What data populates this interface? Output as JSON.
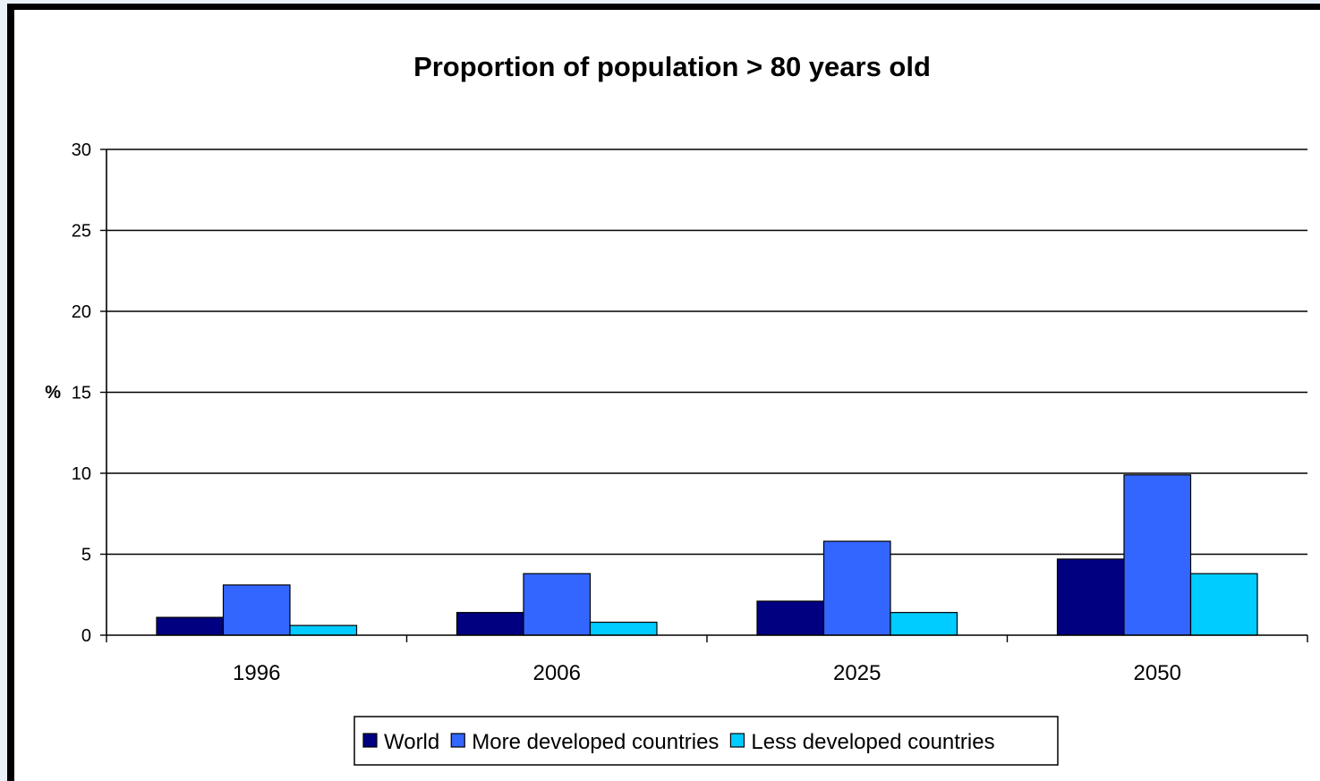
{
  "chart_data": {
    "type": "bar",
    "title": "Proportion of population > 80 years old",
    "ylabel": "%",
    "xlabel": "",
    "ylim": [
      0,
      30
    ],
    "yticks": [
      0,
      5,
      10,
      15,
      20,
      25,
      30
    ],
    "grid": true,
    "legend_position": "bottom",
    "categories": [
      "1996",
      "2006",
      "2025",
      "2050"
    ],
    "series": [
      {
        "name": "World",
        "color": "#000080",
        "values": [
          1.1,
          1.4,
          2.1,
          4.7
        ]
      },
      {
        "name": "More developed countries",
        "color": "#3366ff",
        "values": [
          3.1,
          3.8,
          5.8,
          9.9
        ]
      },
      {
        "name": "Less developed countries",
        "color": "#00ccff",
        "values": [
          0.6,
          0.8,
          1.4,
          3.8
        ]
      }
    ]
  }
}
